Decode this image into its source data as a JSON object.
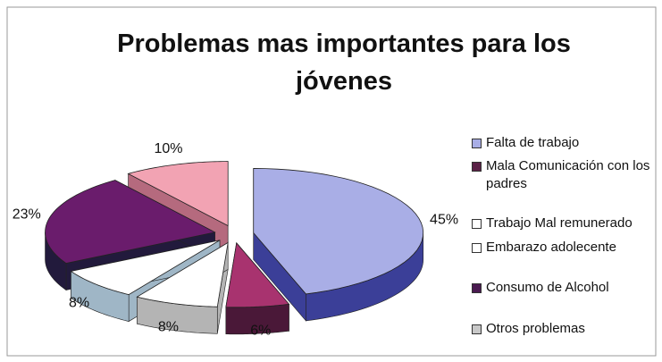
{
  "chart_data": {
    "type": "pie3d",
    "title": "Problemas mas importantes para los jóvenes",
    "categories": [
      "Falta de trabajo",
      "Mala Comunicación con los padres",
      "Trabajo Mal remunerado",
      "Embarazo adolecente",
      "Consumo de Alcohol",
      "Otros problemas"
    ],
    "values": [
      45,
      6,
      8,
      8,
      23,
      10
    ],
    "value_labels": [
      "45%",
      "6%",
      "8%",
      "8%",
      "23%",
      "10%"
    ],
    "colors": [
      "#a9aee6",
      "#a8336f",
      "#ffffff",
      "#ffffff",
      "#6a1c6c",
      "#f2a3b3"
    ],
    "side_colors": [
      "#3b3f98",
      "#4a1838",
      "#b4b4b4",
      "#9fb6c6",
      "#221a3c",
      "#b56a7e"
    ],
    "legend_colors": [
      "#a9aee6",
      "#5a2046",
      "#ffffff",
      "#ffffff",
      "#4a1a50",
      "#c8c8c8"
    ],
    "legend": "right"
  }
}
